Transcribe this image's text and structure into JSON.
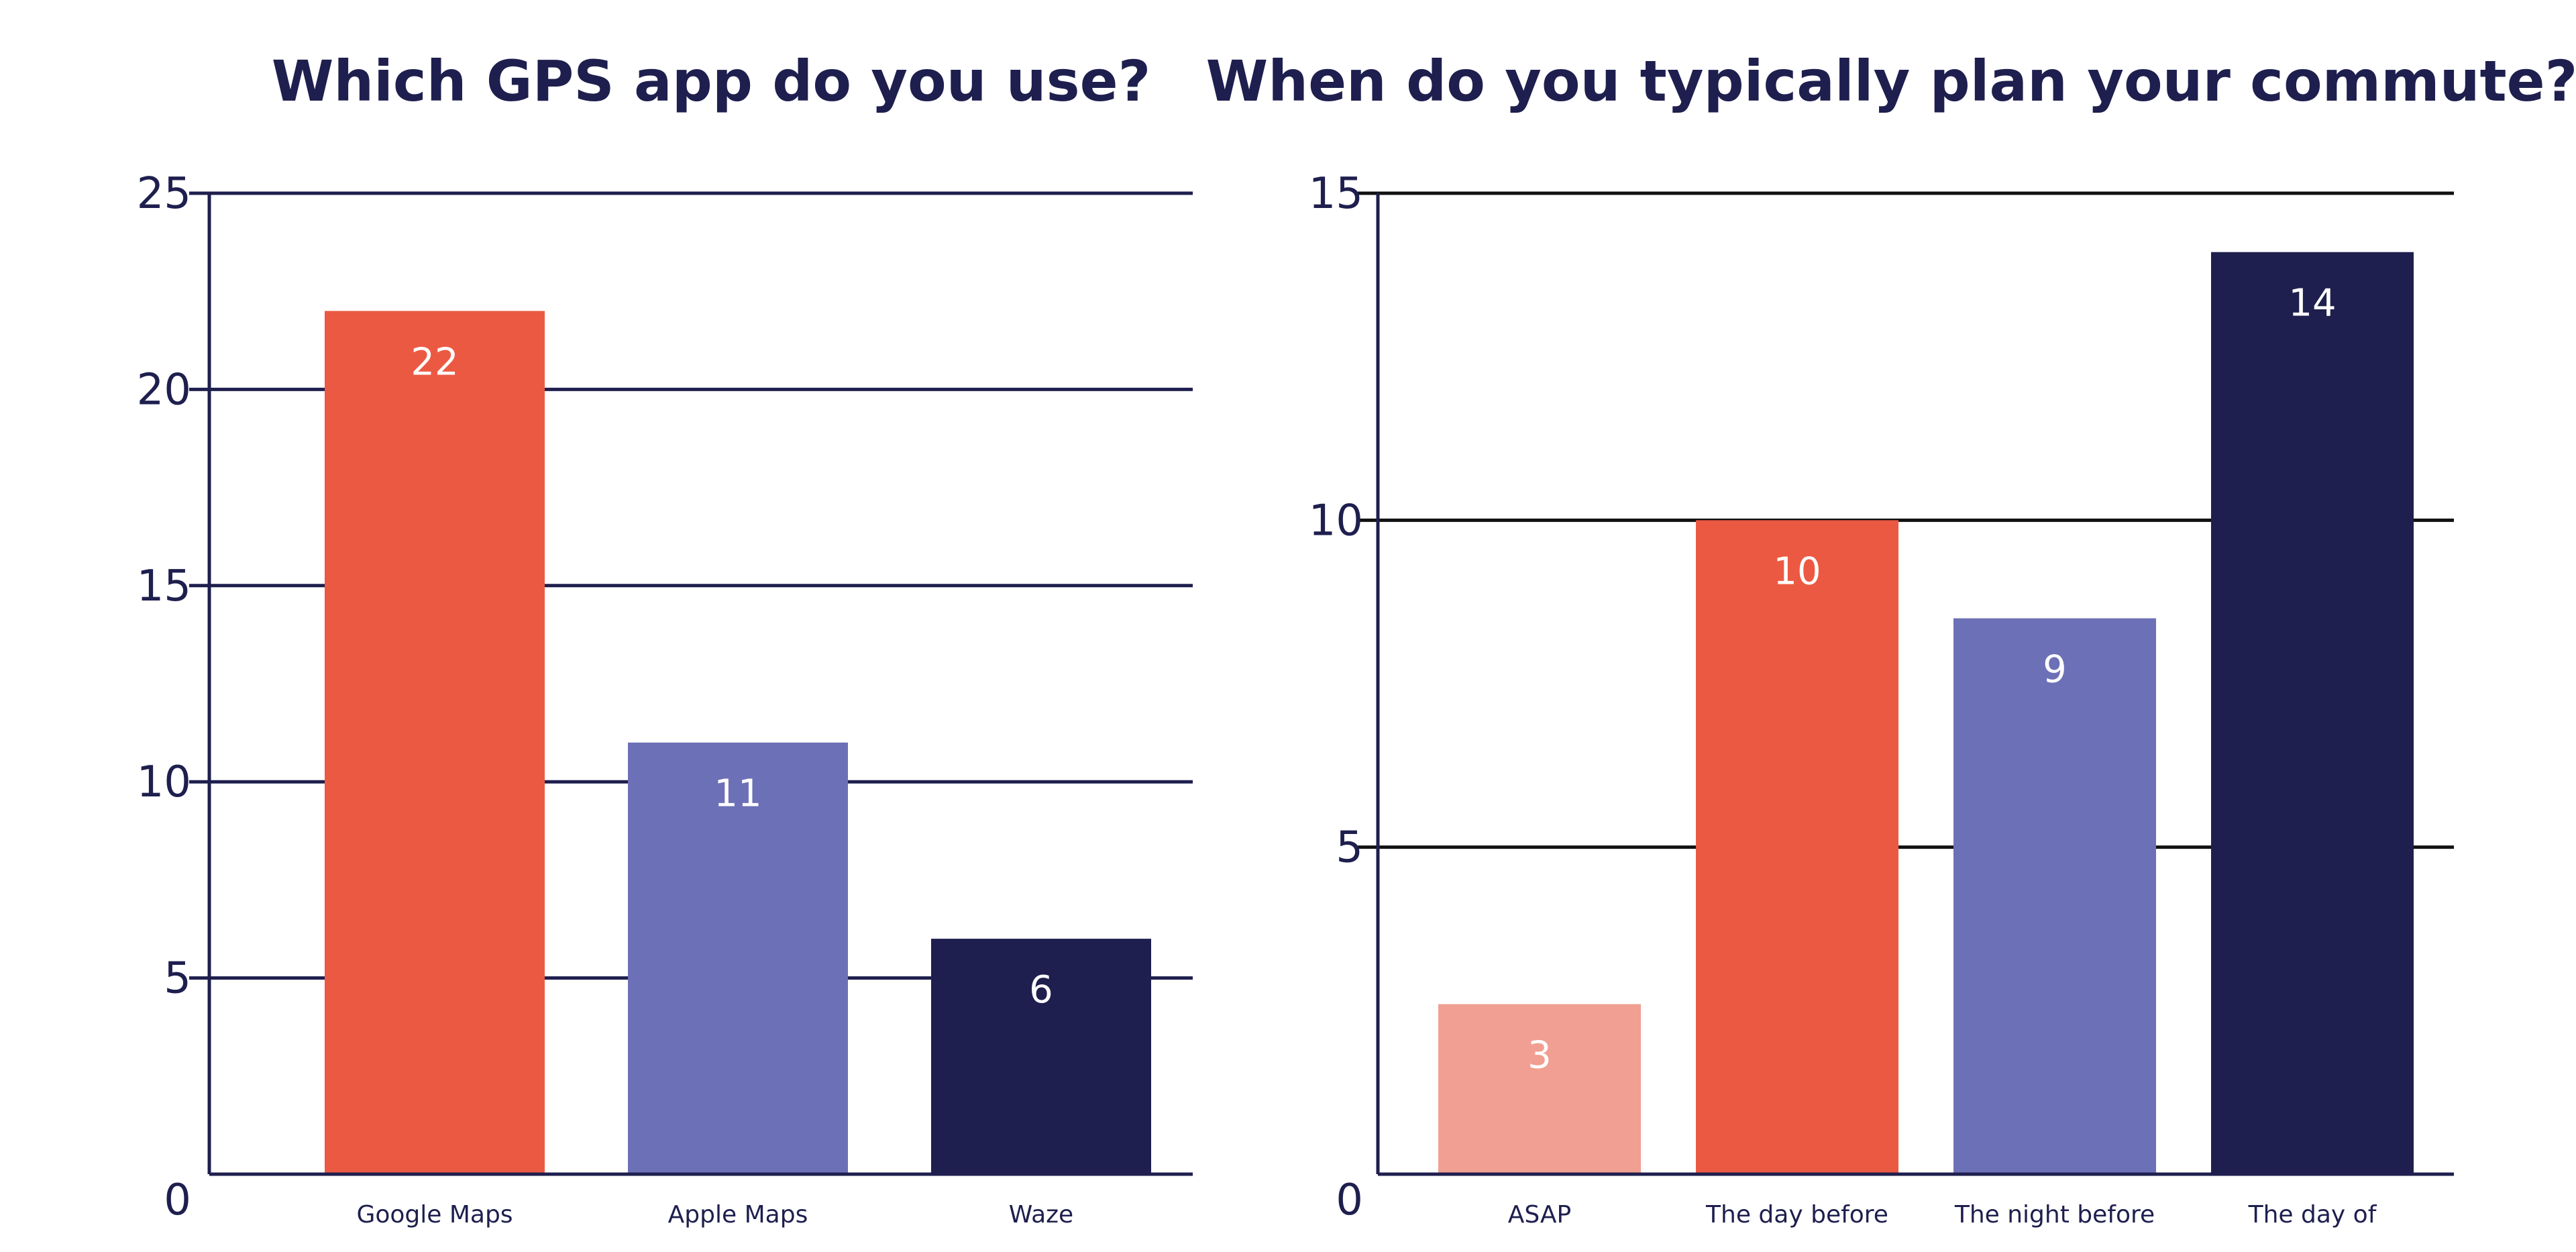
{
  "chart_data": [
    {
      "type": "bar",
      "title": "Which GPS app do you use?",
      "categories": [
        "Google Maps",
        "Apple Maps",
        "Waze"
      ],
      "values": [
        22,
        11,
        6
      ],
      "data_labels": [
        "22",
        "11",
        "6"
      ],
      "colors": [
        "#ec5942",
        "#6c70b6",
        "#1e1f4e"
      ],
      "ylim": [
        0,
        25
      ],
      "yticks": [
        "0",
        "5",
        "10",
        "15",
        "20",
        "25"
      ],
      "grid": true,
      "xlabel": "",
      "ylabel": ""
    },
    {
      "type": "bar",
      "title": "When do you typically plan your commute?",
      "categories": [
        "ASAP",
        "The day before",
        "The night before",
        "The day of"
      ],
      "values": [
        2.6,
        10,
        8.5,
        14.1
      ],
      "data_labels": [
        "3",
        "10",
        "9",
        "14"
      ],
      "colors": [
        "#f09f92",
        "#ec5942",
        "#6c70b6",
        "#1e1f4e"
      ],
      "ylim": [
        0,
        15
      ],
      "yticks": [
        "0",
        "5",
        "10",
        "15"
      ],
      "grid": true,
      "xlabel": "",
      "ylabel": ""
    }
  ],
  "theme": {
    "text_color": "#1e1f4e",
    "axis_color": "#1e1f4e",
    "gridline_color_chart2": "#111111",
    "label_color": "#ffffff"
  }
}
